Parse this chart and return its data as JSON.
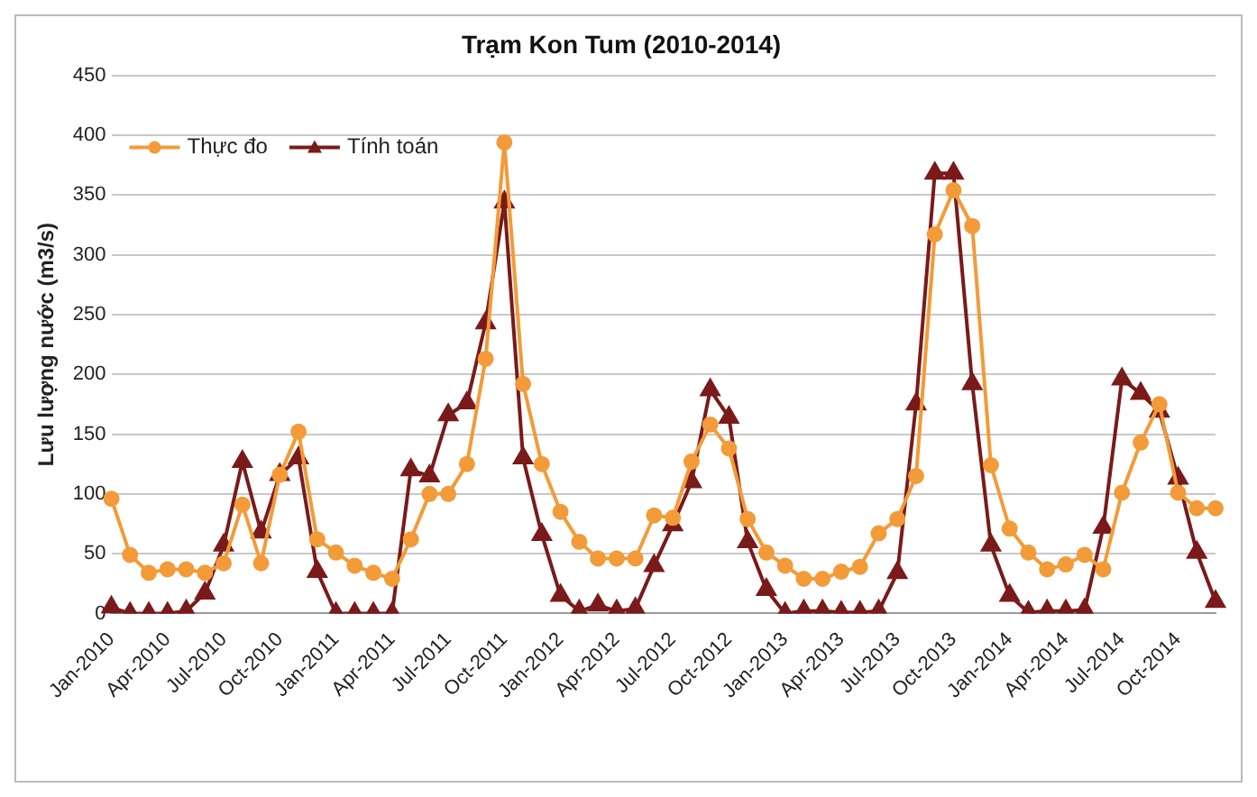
{
  "chart_data": {
    "type": "line",
    "title": "Trạm Kon Tum (2010-2014)",
    "ylabel": "Lưu lượng nước (m3/s)",
    "categories": [
      "Jan-2010",
      null,
      null,
      "Apr-2010",
      null,
      null,
      "Jul-2010",
      null,
      null,
      "Oct-2010",
      null,
      null,
      "Jan-2011",
      null,
      null,
      "Apr-2011",
      null,
      null,
      "Jul-2011",
      null,
      null,
      "Oct-2011",
      null,
      null,
      "Jan-2012",
      null,
      null,
      "Apr-2012",
      null,
      null,
      "Jul-2012",
      null,
      null,
      "Oct-2012",
      null,
      null,
      "Jan-2013",
      null,
      null,
      "Apr-2013",
      null,
      null,
      "Jul-2013",
      null,
      null,
      "Oct-2013",
      null,
      null,
      "Jan-2014",
      null,
      null,
      "Apr-2014",
      null,
      null,
      "Jul-2014",
      null,
      null,
      "Oct-2014",
      null,
      null
    ],
    "series": [
      {
        "name": "Thực đo",
        "color": "#f29b38",
        "marker": "circle",
        "values": [
          96,
          49,
          34,
          37,
          37,
          34,
          42,
          91,
          42,
          116,
          152,
          62,
          51,
          40,
          34,
          29,
          62,
          100,
          100,
          125,
          213,
          394,
          192,
          125,
          85,
          60,
          46,
          46,
          46,
          82,
          80,
          127,
          158,
          138,
          79,
          51,
          40,
          29,
          29,
          35,
          39,
          67,
          79,
          115,
          317,
          354,
          324,
          124,
          71,
          51,
          37,
          41,
          49,
          37,
          101,
          143,
          175,
          101,
          88,
          88
        ]
      },
      {
        "name": "Tính toán",
        "color": "#7a1a1a",
        "marker": "triangle",
        "values": [
          5,
          0,
          0,
          0,
          2,
          17,
          57,
          127,
          68,
          116,
          130,
          35,
          0,
          0,
          0,
          0,
          120,
          115,
          166,
          176,
          243,
          344,
          130,
          66,
          15,
          2,
          7,
          2,
          4,
          40,
          74,
          110,
          187,
          164,
          60,
          20,
          0,
          2,
          2,
          1,
          1,
          2,
          34,
          175,
          368,
          368,
          192,
          57,
          15,
          1,
          2,
          2,
          3,
          72,
          196,
          184,
          169,
          113,
          51,
          10
        ]
      }
    ],
    "ylim": [
      0,
      450
    ],
    "yticks": [
      0,
      50,
      100,
      150,
      200,
      250,
      300,
      350,
      400,
      450
    ],
    "grid": "y",
    "legend": "top left",
    "line_style": "solid"
  }
}
